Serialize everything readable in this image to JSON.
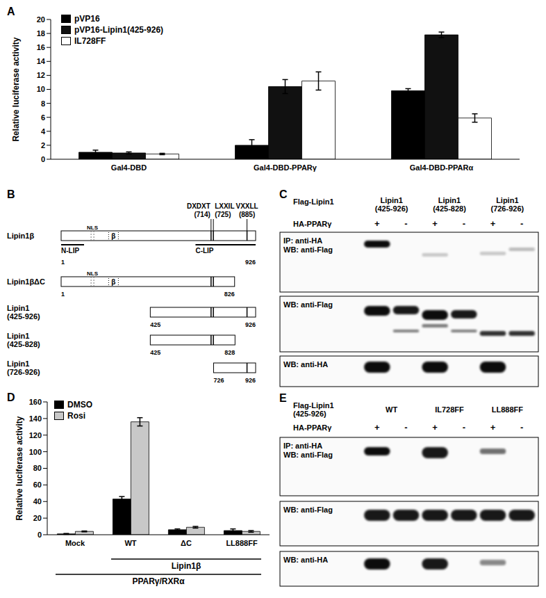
{
  "chart_data": [
    {
      "panel_label": "A",
      "type": "bar",
      "y_label": "Relative luciferase activity",
      "categories": [
        "Gal4-DBD",
        "Gal4-DBD-PPARγ",
        "Gal4-DBD-PPARα"
      ],
      "series": [
        {
          "name": "pVP16",
          "color": "#000000",
          "values": [
            1,
            2,
            9.8
          ],
          "errors": [
            0.3,
            0.8,
            0.3
          ]
        },
        {
          "name": "pVP16-Lipin1(425-926)",
          "color": "#111111",
          "values": [
            0.9,
            10.4,
            17.8
          ],
          "errors": [
            0.15,
            1.0,
            0.4
          ]
        },
        {
          "name": "IL728FF",
          "color": "#ffffff",
          "values": [
            0.75,
            11.2,
            5.9
          ],
          "errors": [
            0.1,
            1.3,
            0.6
          ]
        }
      ],
      "ylim": [
        0,
        20
      ],
      "yticks": [
        0,
        2,
        4,
        6,
        8,
        10,
        12,
        14,
        16,
        18,
        20
      ],
      "legend": "upper left",
      "grid": false
    },
    {
      "panel_label": "D",
      "type": "bar",
      "y_label": "Relative luciferase activity",
      "categories": [
        "Mock",
        "WT",
        "ΔC",
        "LL888FF"
      ],
      "series": [
        {
          "name": "DMSO",
          "color": "#000000",
          "values": [
            1,
            43,
            6,
            5
          ],
          "errors": [
            0.5,
            3,
            1,
            2
          ]
        },
        {
          "name": "Rosi",
          "color": "#c8c8c8",
          "values": [
            4,
            136,
            9,
            4
          ],
          "errors": [
            0.5,
            5,
            1,
            1
          ]
        }
      ],
      "ylim": [
        0,
        160
      ],
      "yticks": [
        0,
        20,
        40,
        60,
        80,
        100,
        120,
        140,
        160
      ],
      "legend": "upper left",
      "grid": false,
      "category_groups": [
        {
          "label": "Lipin1β",
          "categories": [
            "WT",
            "ΔC",
            "LL888FF"
          ]
        },
        {
          "label": "PPARγ/RXRα",
          "categories": [
            "Mock",
            "WT",
            "ΔC",
            "LL888FF"
          ]
        }
      ]
    }
  ],
  "diagram": {
    "panel_label": "B",
    "length": 926,
    "rows": [
      {
        "label": "Lipin1β",
        "start": 1,
        "end": 926
      },
      {
        "label": "Lipin1βΔC",
        "start": 1,
        "end": 826
      },
      {
        "label": "Lipin1 (425-926)",
        "start": 425,
        "end": 926
      },
      {
        "label": "Lipin1 (425-828)",
        "start": 425,
        "end": 828
      },
      {
        "label": "Lipin1 (726-926)",
        "start": 726,
        "end": 926
      }
    ],
    "marks": [
      {
        "label": "NLS",
        "position": 150
      },
      {
        "label": "β",
        "position": 250
      }
    ],
    "motifs": [
      {
        "name": "DXDXT",
        "position": 714,
        "label": "(714)"
      },
      {
        "name": "LXXIL",
        "position": 725,
        "label": "(725)"
      },
      {
        "name": "VXXLL",
        "position": 885,
        "label": "(885)"
      }
    ],
    "regions": [
      {
        "label": "N-LIP",
        "start": 1,
        "end": 110
      },
      {
        "label": "C-LIP",
        "start": 640,
        "end": 926
      }
    ]
  },
  "blots": [
    {
      "panel_label": "C",
      "header": "Flag-Lipin1",
      "columns": [
        "Lipin1 (425-926)",
        "Lipin1 (425-828)",
        "Lipin1 (726-926)"
      ],
      "row_label": "HA-PPARγ",
      "signs": [
        "+",
        "-",
        "+",
        "-",
        "+",
        "-"
      ],
      "sections": [
        [
          "IP: anti-HA",
          "WB: anti-Flag"
        ],
        [
          "WB: anti-Flag"
        ],
        [
          "WB: anti-HA"
        ]
      ]
    },
    {
      "panel_label": "E",
      "header": "Flag-Lipin1 (425-926)",
      "columns": [
        "WT",
        "IL728FF",
        "LL888FF"
      ],
      "row_label": "HA-PPARγ",
      "signs": [
        "+",
        "-",
        "+",
        "-",
        "+",
        "-"
      ],
      "sections": [
        [
          "IP: anti-HA",
          "WB: anti-Flag"
        ],
        [
          "WB: anti-Flag"
        ],
        [
          "WB: anti-HA"
        ]
      ]
    }
  ]
}
